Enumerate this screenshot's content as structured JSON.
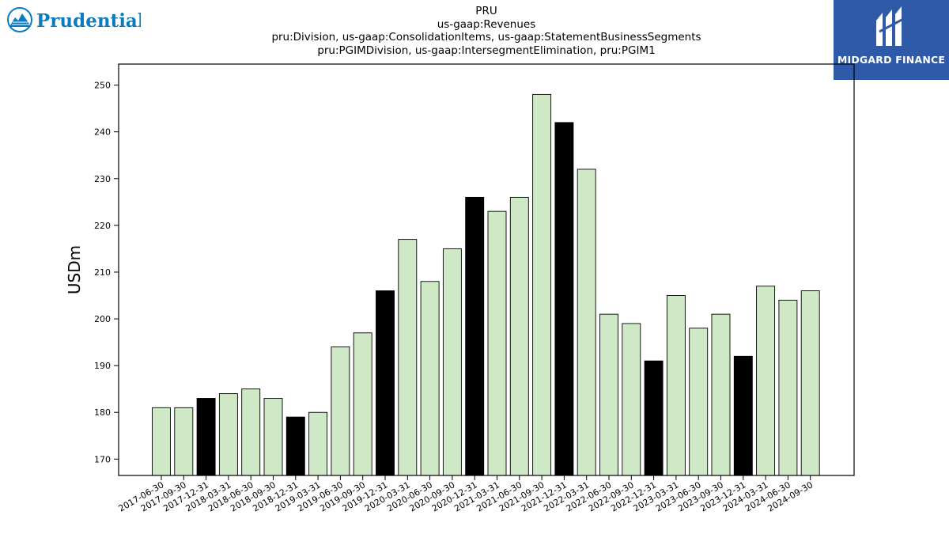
{
  "branding": {
    "left_logo_text": "Prudential",
    "left_logo_icon": "rock-of-gibraltar-icon",
    "right_logo_text": "MIDGARD FINANCE",
    "right_logo_icon": "midgard-m-icon",
    "colors": {
      "prudential_blue": "#0a7bc1",
      "midgard_blue": "#2f5aa8"
    }
  },
  "chart_data": {
    "type": "bar",
    "title": [
      "PRU",
      "us-gaap:Revenues",
      "pru:Division, us-gaap:ConsolidationItems, us-gaap:StatementBusinessSegments",
      "pru:PGIMDivision, us-gaap:IntersegmentElimination, pru:PGIM1"
    ],
    "xlabel": "",
    "ylabel": "USDm",
    "ylim": [
      166.5,
      254.5
    ],
    "yticks": [
      170,
      180,
      190,
      200,
      210,
      220,
      230,
      240,
      250
    ],
    "grid": false,
    "colors": {
      "quarter": "#cfe8c6",
      "year_end": "#000000",
      "edge": "#000000"
    },
    "categories": [
      "2017-06-30",
      "2017-09-30",
      "2017-12-31",
      "2018-03-31",
      "2018-06-30",
      "2018-09-30",
      "2018-12-31",
      "2019-03-31",
      "2019-06-30",
      "2019-09-30",
      "2019-12-31",
      "2020-03-31",
      "2020-06-30",
      "2020-09-30",
      "2020-12-31",
      "2021-03-31",
      "2021-06-30",
      "2021-09-30",
      "2021-12-31",
      "2022-03-31",
      "2022-06-30",
      "2022-09-30",
      "2022-12-31",
      "2023-03-31",
      "2023-06-30",
      "2023-09-30",
      "2023-12-31",
      "2024-03-31",
      "2024-06-30",
      "2024-09-30"
    ],
    "values": [
      181,
      181,
      183,
      184,
      185,
      183,
      179,
      180,
      194,
      197,
      206,
      217,
      208,
      215,
      226,
      223,
      226,
      248,
      242,
      232,
      201,
      199,
      191,
      205,
      198,
      201,
      192,
      207,
      204,
      206
    ]
  }
}
